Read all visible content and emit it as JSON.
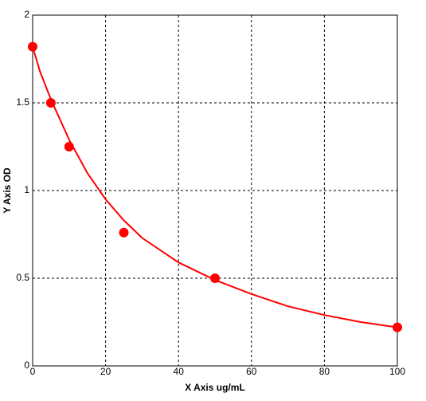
{
  "chart_data": {
    "type": "scatter",
    "x_label": "X Axis ug/mL",
    "y_label": "Y Axis OD",
    "xlim": [
      0,
      100
    ],
    "xticks": [
      0,
      20,
      40,
      60,
      80,
      100
    ],
    "ylim": [
      0,
      2
    ],
    "yticks": [
      0,
      0.5,
      1,
      1.5,
      2
    ],
    "grid": true,
    "series": [
      {
        "mode": "markers",
        "color": "#ff0000",
        "x": [
          0,
          5,
          10,
          25,
          50,
          100
        ],
        "values": [
          1.82,
          1.5,
          1.25,
          0.76,
          0.5,
          0.22
        ]
      },
      {
        "mode": "line",
        "color": "#ff0000",
        "x": [
          0,
          2,
          5,
          10,
          15,
          20,
          25,
          30,
          40,
          50,
          60,
          70,
          80,
          90,
          100
        ],
        "values": [
          1.82,
          1.68,
          1.52,
          1.29,
          1.1,
          0.95,
          0.83,
          0.73,
          0.59,
          0.49,
          0.41,
          0.34,
          0.29,
          0.25,
          0.22
        ]
      }
    ]
  }
}
